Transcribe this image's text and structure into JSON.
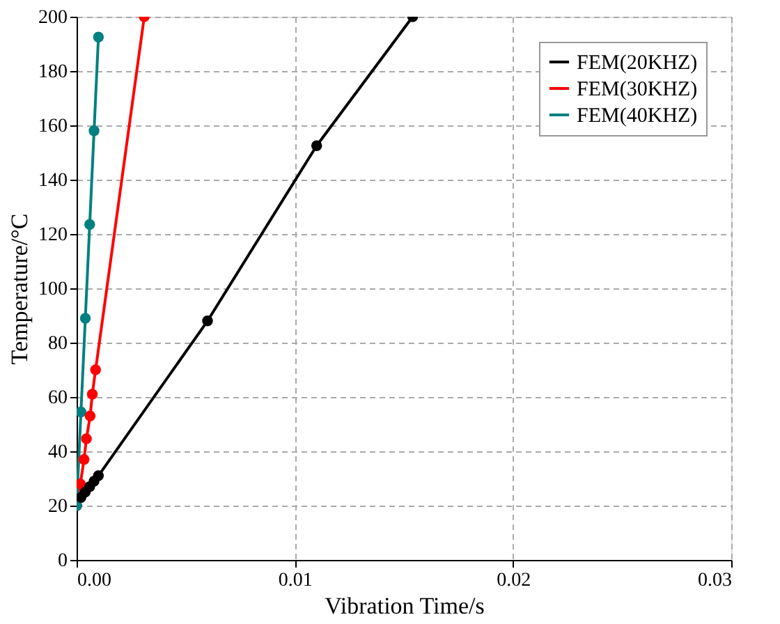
{
  "chart_data": {
    "type": "line",
    "xlabel": "Vibration  Time/s",
    "ylabel": "Temperature/°C",
    "xlim": [
      0,
      0.03
    ],
    "ylim": [
      0,
      200
    ],
    "xticks": [
      {
        "value": 0,
        "label": "0.00"
      },
      {
        "value": 0.01,
        "label": "0.01"
      },
      {
        "value": 0.02,
        "label": "0.02"
      },
      {
        "value": 0.03,
        "label": "0.03"
      }
    ],
    "yticks": [
      0,
      20,
      40,
      60,
      80,
      100,
      120,
      140,
      160,
      180,
      200
    ],
    "grid": true,
    "legend": "top right",
    "marker": "circle",
    "line_style": "solid",
    "series": [
      {
        "name": "FEM(20KHZ)",
        "color": "#000000",
        "x": [
          0,
          0.0002,
          0.0004,
          0.0006,
          0.0008,
          0.001,
          0.006,
          0.011,
          0.0154
        ],
        "values": [
          20,
          23,
          25,
          27,
          29,
          31,
          88,
          152.5,
          200
        ]
      },
      {
        "name": "FEM(30KHZ)",
        "color": "#ff0000",
        "x": [
          0,
          0.00017,
          0.00034,
          0.00045,
          0.00062,
          0.00072,
          0.00087,
          0.0031
        ],
        "values": [
          20,
          28,
          37,
          44.6,
          53,
          61,
          70,
          200
        ]
      },
      {
        "name": "FEM(40KHZ)",
        "color": "#008080",
        "x": [
          0,
          0.0002,
          0.0004,
          0.0006,
          0.0008,
          0.001
        ],
        "values": [
          20,
          54.5,
          89,
          123.5,
          158,
          192.5
        ]
      }
    ]
  }
}
